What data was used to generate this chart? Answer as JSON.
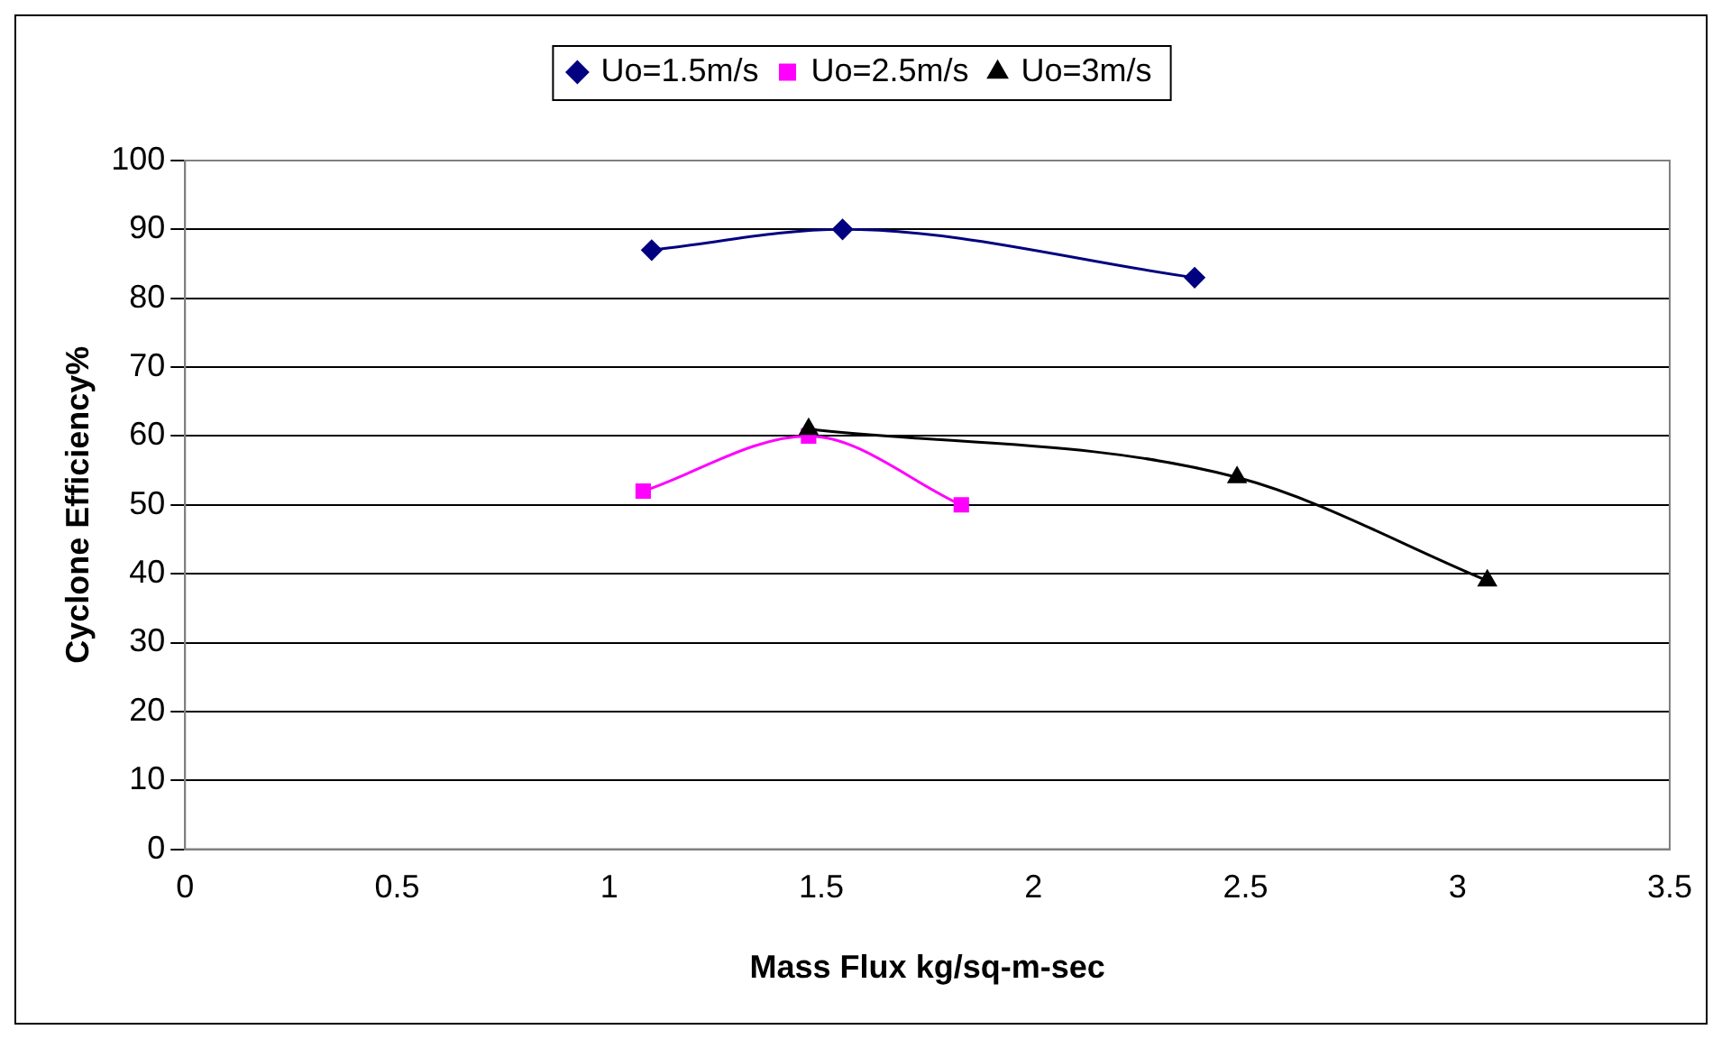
{
  "chart_data": {
    "type": "line",
    "xlabel": "Mass Flux kg/sq-m-sec",
    "ylabel": "Cyclone Efficiency%",
    "xlim": [
      0,
      3.5
    ],
    "xticks": [
      0,
      0.5,
      1,
      1.5,
      2,
      2.5,
      3,
      3.5
    ],
    "ylim": [
      0,
      100
    ],
    "yticks": [
      0,
      10,
      20,
      30,
      40,
      50,
      60,
      70,
      80,
      90,
      100
    ],
    "grid": "y",
    "legend": "top",
    "series": [
      {
        "name": "Uo=1.5m/s",
        "color": "#000080",
        "marker": "diamond",
        "x": [
          1.1,
          1.55,
          2.38
        ],
        "values": [
          87,
          90,
          83
        ]
      },
      {
        "name": "Uo=2.5m/s",
        "color": "#ff00ff",
        "marker": "square",
        "x": [
          1.08,
          1.47,
          1.83
        ],
        "values": [
          52,
          60,
          50
        ]
      },
      {
        "name": "Uo=3m/s",
        "color": "#000000",
        "marker": "triangle",
        "x": [
          1.47,
          2.48,
          3.07
        ],
        "values": [
          61,
          54,
          39
        ]
      }
    ]
  }
}
